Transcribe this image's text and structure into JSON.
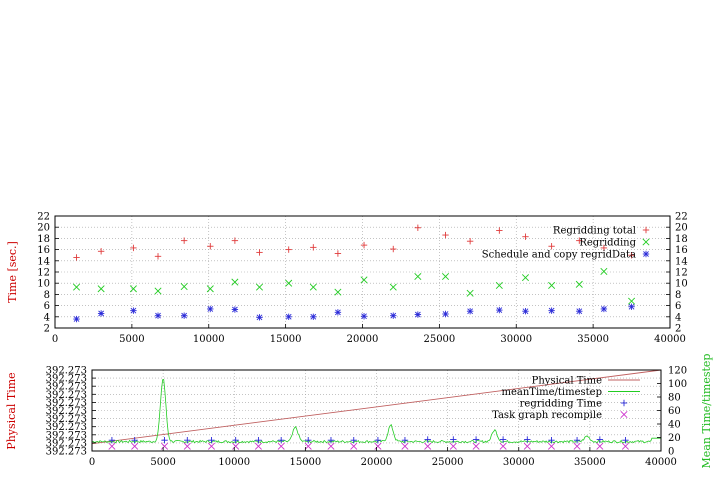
{
  "chart_data": [
    {
      "type": "scatter",
      "title": "",
      "xlabel": "",
      "ylabel": "Time [sec.]",
      "xlim": [
        0,
        40000
      ],
      "ylim": [
        2,
        22
      ],
      "y2lim": [
        2,
        22
      ],
      "x_ticks": [
        "0",
        "5000",
        "10000",
        "15000",
        "20000",
        "25000",
        "30000",
        "35000",
        "40000"
      ],
      "y_ticks": [
        "2",
        "4",
        "6",
        "8",
        "10",
        "12",
        "14",
        "16",
        "18",
        "20",
        "22"
      ],
      "y2_ticks": [
        "2",
        "4",
        "6",
        "8",
        "10",
        "12",
        "14",
        "16",
        "18",
        "20",
        "22"
      ],
      "grid": true,
      "legend_position": "top-right",
      "series": [
        {
          "name": "Regridding total",
          "marker": "plus",
          "color": "#e03c3c",
          "x": [
            1400,
            3000,
            5100,
            6700,
            8400,
            10100,
            11700,
            13300,
            15200,
            16800,
            18400,
            20100,
            22000,
            23600,
            25400,
            27000,
            28900,
            30600,
            32300,
            34100,
            35700,
            37500
          ],
          "y": [
            14.6,
            15.7,
            16.3,
            14.8,
            17.6,
            16.6,
            17.6,
            15.5,
            16.0,
            16.4,
            15.3,
            16.8,
            16.1,
            19.9,
            18.6,
            17.5,
            19.4,
            18.3,
            16.6,
            17.6,
            16.3,
            15.0
          ]
        },
        {
          "name": "Regridding",
          "marker": "cross",
          "color": "#22cc22",
          "x": [
            1400,
            3000,
            5100,
            6700,
            8400,
            10100,
            11700,
            13300,
            15200,
            16800,
            18400,
            20100,
            22000,
            23600,
            25400,
            27000,
            28900,
            30600,
            32300,
            34100,
            35700,
            37500
          ],
          "y": [
            9.3,
            9.0,
            9.0,
            8.6,
            9.4,
            9.0,
            10.2,
            9.3,
            10.0,
            9.3,
            8.4,
            10.6,
            9.3,
            11.2,
            11.2,
            8.2,
            9.6,
            11.0,
            9.6,
            9.8,
            12.1,
            6.8
          ]
        },
        {
          "name": "Schedule and copy regridData",
          "marker": "star",
          "color": "#2a2ad8",
          "x": [
            1400,
            3000,
            5100,
            6700,
            8400,
            10100,
            11700,
            13300,
            15200,
            16800,
            18400,
            20100,
            22000,
            23600,
            25400,
            27000,
            28900,
            30600,
            32300,
            34100,
            35700,
            37500
          ],
          "y": [
            3.6,
            4.6,
            5.1,
            4.2,
            4.2,
            5.4,
            5.3,
            3.9,
            4.0,
            4.0,
            4.8,
            4.1,
            4.2,
            4.4,
            4.5,
            5.0,
            5.2,
            5.0,
            5.1,
            5.0,
            5.4,
            5.8
          ]
        }
      ]
    },
    {
      "type": "line",
      "title": "",
      "xlabel": "",
      "ylabel": "Physical Time",
      "y2label": "Mean Time/timestep",
      "xlim": [
        0,
        40000
      ],
      "y2lim": [
        0,
        120
      ],
      "x_ticks": [
        "0",
        "5000",
        "10000",
        "15000",
        "20000",
        "25000",
        "30000",
        "35000",
        "40000"
      ],
      "y_ticks": [
        "392.273",
        "392.273",
        "392.273",
        "392.273",
        "392.273",
        "392.273",
        "392.273",
        "392.273",
        "392.273",
        "392.273",
        "392.273"
      ],
      "y2_ticks": [
        "0",
        "20",
        "40",
        "60",
        "80",
        "100",
        "120"
      ],
      "grid": true,
      "legend_position": "top-right",
      "series": [
        {
          "name": "Physical Time",
          "axis": "left",
          "style": "line",
          "color": "#c06060",
          "x": [
            0,
            40000
          ],
          "y_fraction": [
            0.09,
            1.0
          ]
        },
        {
          "name": "meanTime/timestep",
          "axis": "right",
          "style": "line",
          "color": "#22cc22",
          "baseline": 14,
          "peaks": [
            {
              "x": 5000,
              "y": 108
            },
            {
              "x": 14300,
              "y": 35
            },
            {
              "x": 21000,
              "y": 38
            },
            {
              "x": 28300,
              "y": 31
            },
            {
              "x": 34800,
              "y": 22
            }
          ]
        },
        {
          "name": "regridding Time",
          "axis": "right",
          "style": "plus",
          "color": "#2a2ad8",
          "x": [
            1400,
            3000,
            5100,
            6700,
            8400,
            10100,
            11700,
            13300,
            15200,
            16800,
            18400,
            20100,
            22000,
            23600,
            25400,
            27000,
            28900,
            30600,
            32300,
            34100,
            35700,
            37500
          ],
          "y": [
            16,
            16,
            16,
            16,
            16,
            16,
            16,
            16,
            16,
            16,
            16,
            16,
            16,
            17,
            17,
            17,
            17,
            17,
            16,
            16,
            17,
            16
          ]
        },
        {
          "name": "Task graph recompile",
          "axis": "right",
          "style": "cross",
          "color": "#cc33cc",
          "x": [
            1400,
            3000,
            5100,
            6700,
            8400,
            10100,
            11700,
            13300,
            15200,
            16800,
            18400,
            20100,
            22000,
            23600,
            25400,
            27000,
            28900,
            30600,
            32300,
            34100,
            35700,
            37500
          ],
          "y": [
            7,
            7,
            7,
            7,
            7,
            7,
            7,
            7,
            7,
            7,
            7,
            7,
            7,
            7,
            7,
            7,
            7,
            7,
            7,
            7,
            7,
            7
          ]
        }
      ]
    }
  ]
}
